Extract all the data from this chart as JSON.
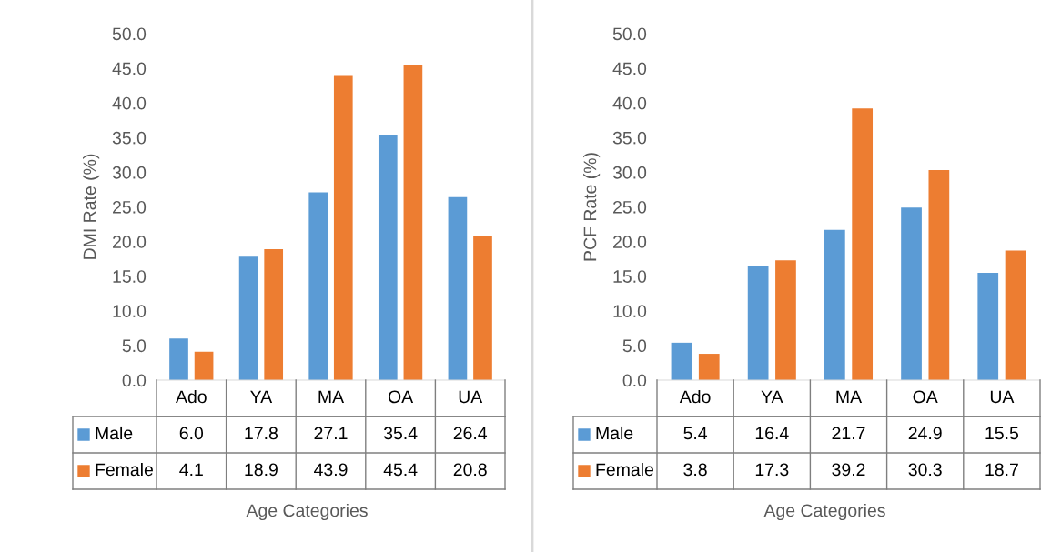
{
  "chart_data": [
    {
      "type": "bar",
      "xlabel": "Age Categories",
      "ylabel": "DMI Rate (%)",
      "categories": [
        "Ado",
        "YA",
        "MA",
        "OA",
        "UA"
      ],
      "series": [
        {
          "name": "Male",
          "color": "#5b9bd5",
          "values": [
            6.0,
            17.8,
            27.1,
            35.4,
            26.4
          ],
          "value_labels": [
            "6.0",
            "17.8",
            "27.1",
            "35.4",
            "26.4"
          ]
        },
        {
          "name": "Female",
          "color": "#ed7d31",
          "values": [
            4.1,
            18.9,
            43.9,
            45.4,
            20.8
          ],
          "value_labels": [
            "4.1",
            "18.9",
            "43.9",
            "45.4",
            "20.8"
          ]
        }
      ],
      "ylim": [
        0,
        50
      ],
      "yticks": [
        {
          "value": 0,
          "label": "0.0"
        },
        {
          "value": 5,
          "label": "5.0"
        },
        {
          "value": 10,
          "label": "10.0"
        },
        {
          "value": 15,
          "label": "15.0"
        },
        {
          "value": 20,
          "label": "20.0"
        },
        {
          "value": 25,
          "label": "25.0"
        },
        {
          "value": 30,
          "label": "30.0"
        },
        {
          "value": 35,
          "label": "35.0"
        },
        {
          "value": 40,
          "label": "40.0"
        },
        {
          "value": 45,
          "label": "45.0"
        },
        {
          "value": 50,
          "label": "50.0"
        }
      ],
      "legend": "bottom",
      "grid": false
    },
    {
      "type": "bar",
      "xlabel": "Age Categories",
      "ylabel": "PCF Rate (%)",
      "categories": [
        "Ado",
        "YA",
        "MA",
        "OA",
        "UA"
      ],
      "series": [
        {
          "name": "Male",
          "color": "#5b9bd5",
          "values": [
            5.4,
            16.4,
            21.7,
            24.9,
            15.5
          ],
          "value_labels": [
            "5.4",
            "16.4",
            "21.7",
            "24.9",
            "15.5"
          ]
        },
        {
          "name": "Female",
          "color": "#ed7d31",
          "values": [
            3.8,
            17.3,
            39.2,
            30.3,
            18.7
          ],
          "value_labels": [
            "3.8",
            "17.3",
            "39.2",
            "30.3",
            "18.7"
          ]
        }
      ],
      "ylim": [
        0,
        50
      ],
      "yticks": [
        {
          "value": 0,
          "label": "0.0"
        },
        {
          "value": 5,
          "label": "5.0"
        },
        {
          "value": 10,
          "label": "10.0"
        },
        {
          "value": 15,
          "label": "15.0"
        },
        {
          "value": 20,
          "label": "20.0"
        },
        {
          "value": 25,
          "label": "25.0"
        },
        {
          "value": 30,
          "label": "30.0"
        },
        {
          "value": 35,
          "label": "35.0"
        },
        {
          "value": 40,
          "label": "40.0"
        },
        {
          "value": 45,
          "label": "45.0"
        },
        {
          "value": 50,
          "label": "50.0"
        }
      ],
      "legend": "bottom",
      "grid": false
    }
  ]
}
